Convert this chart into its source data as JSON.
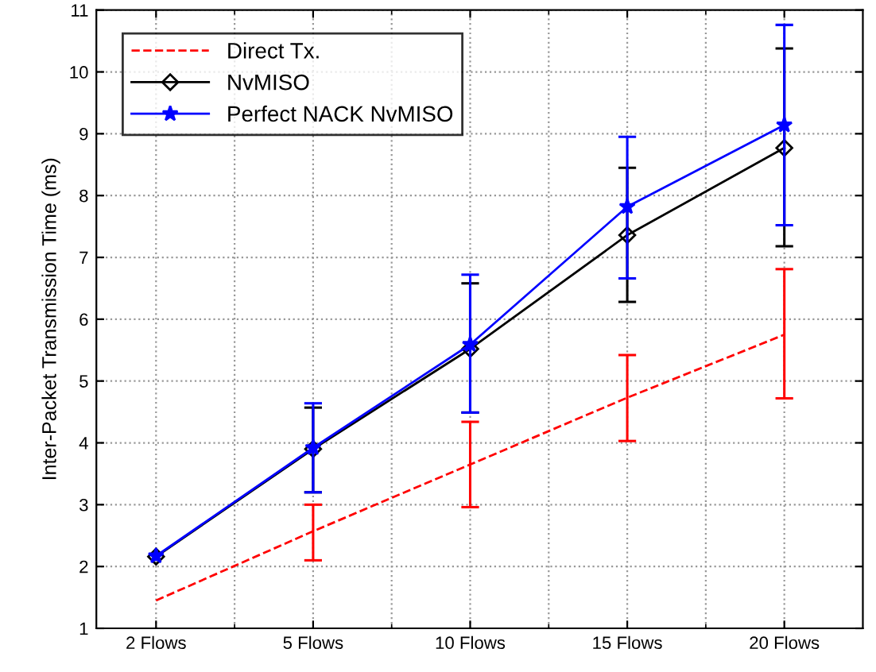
{
  "chart_data": {
    "type": "line",
    "ylabel": "Inter-Packet Transmission Time (ms)",
    "categories": [
      "2 Flows",
      "5 Flows",
      "10 Flows",
      "15 Flows",
      "20 Flows"
    ],
    "ylim": [
      1,
      11
    ],
    "yticks": [
      1,
      2,
      3,
      4,
      5,
      6,
      7,
      8,
      9,
      10,
      11
    ],
    "grid": true,
    "legend": "top left",
    "series": [
      {
        "name": "Direct Tx.",
        "color": "#ff0000",
        "line_style": "dashed",
        "marker": "none",
        "values": [
          1.45,
          2.57,
          3.65,
          4.73,
          5.75
        ],
        "errors": [
          null,
          [
            2.1,
            3.0
          ],
          [
            2.96,
            4.34
          ],
          [
            4.03,
            5.42
          ],
          [
            4.72,
            6.81
          ]
        ]
      },
      {
        "name": "NvMISO",
        "color": "#000000",
        "line_style": "solid",
        "marker": "diamond",
        "values": [
          2.16,
          3.9,
          5.52,
          7.36,
          8.77
        ],
        "errors": [
          null,
          [
            3.2,
            4.57
          ],
          [
            4.49,
            6.58
          ],
          [
            6.28,
            8.45
          ],
          [
            7.18,
            10.38
          ]
        ]
      },
      {
        "name": "Perfect NACK NvMISO",
        "color": "#0000ff",
        "line_style": "solid",
        "marker": "star",
        "values": [
          2.17,
          3.92,
          5.59,
          7.82,
          9.14
        ],
        "errors": [
          null,
          [
            3.2,
            4.64
          ],
          [
            4.49,
            6.72
          ],
          [
            6.66,
            8.95
          ],
          [
            7.52,
            10.76
          ]
        ]
      }
    ]
  }
}
